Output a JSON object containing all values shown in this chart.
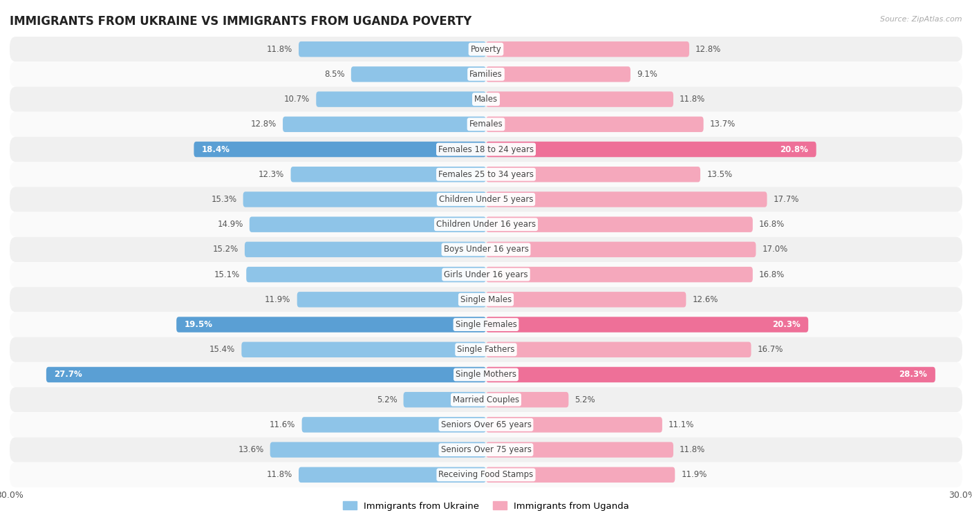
{
  "title": "IMMIGRANTS FROM UKRAINE VS IMMIGRANTS FROM UGANDA POVERTY",
  "source": "Source: ZipAtlas.com",
  "categories": [
    "Poverty",
    "Families",
    "Males",
    "Females",
    "Females 18 to 24 years",
    "Females 25 to 34 years",
    "Children Under 5 years",
    "Children Under 16 years",
    "Boys Under 16 years",
    "Girls Under 16 years",
    "Single Males",
    "Single Females",
    "Single Fathers",
    "Single Mothers",
    "Married Couples",
    "Seniors Over 65 years",
    "Seniors Over 75 years",
    "Receiving Food Stamps"
  ],
  "ukraine_values": [
    11.8,
    8.5,
    10.7,
    12.8,
    18.4,
    12.3,
    15.3,
    14.9,
    15.2,
    15.1,
    11.9,
    19.5,
    15.4,
    27.7,
    5.2,
    11.6,
    13.6,
    11.8
  ],
  "uganda_values": [
    12.8,
    9.1,
    11.8,
    13.7,
    20.8,
    13.5,
    17.7,
    16.8,
    17.0,
    16.8,
    12.6,
    20.3,
    16.7,
    28.3,
    5.2,
    11.1,
    11.8,
    11.9
  ],
  "ukraine_color": "#8ec4e8",
  "uganda_color": "#f5a8bc",
  "ukraine_highlight_color": "#5a9fd4",
  "uganda_highlight_color": "#ee7098",
  "highlight_rows": [
    4,
    11,
    13
  ],
  "xlim": 30.0,
  "bar_height": 0.62,
  "background_color": "#ffffff",
  "row_odd_color": "#f0f0f0",
  "row_even_color": "#fafafa",
  "legend_ukraine": "Immigrants from Ukraine",
  "legend_uganda": "Immigrants from Uganda"
}
